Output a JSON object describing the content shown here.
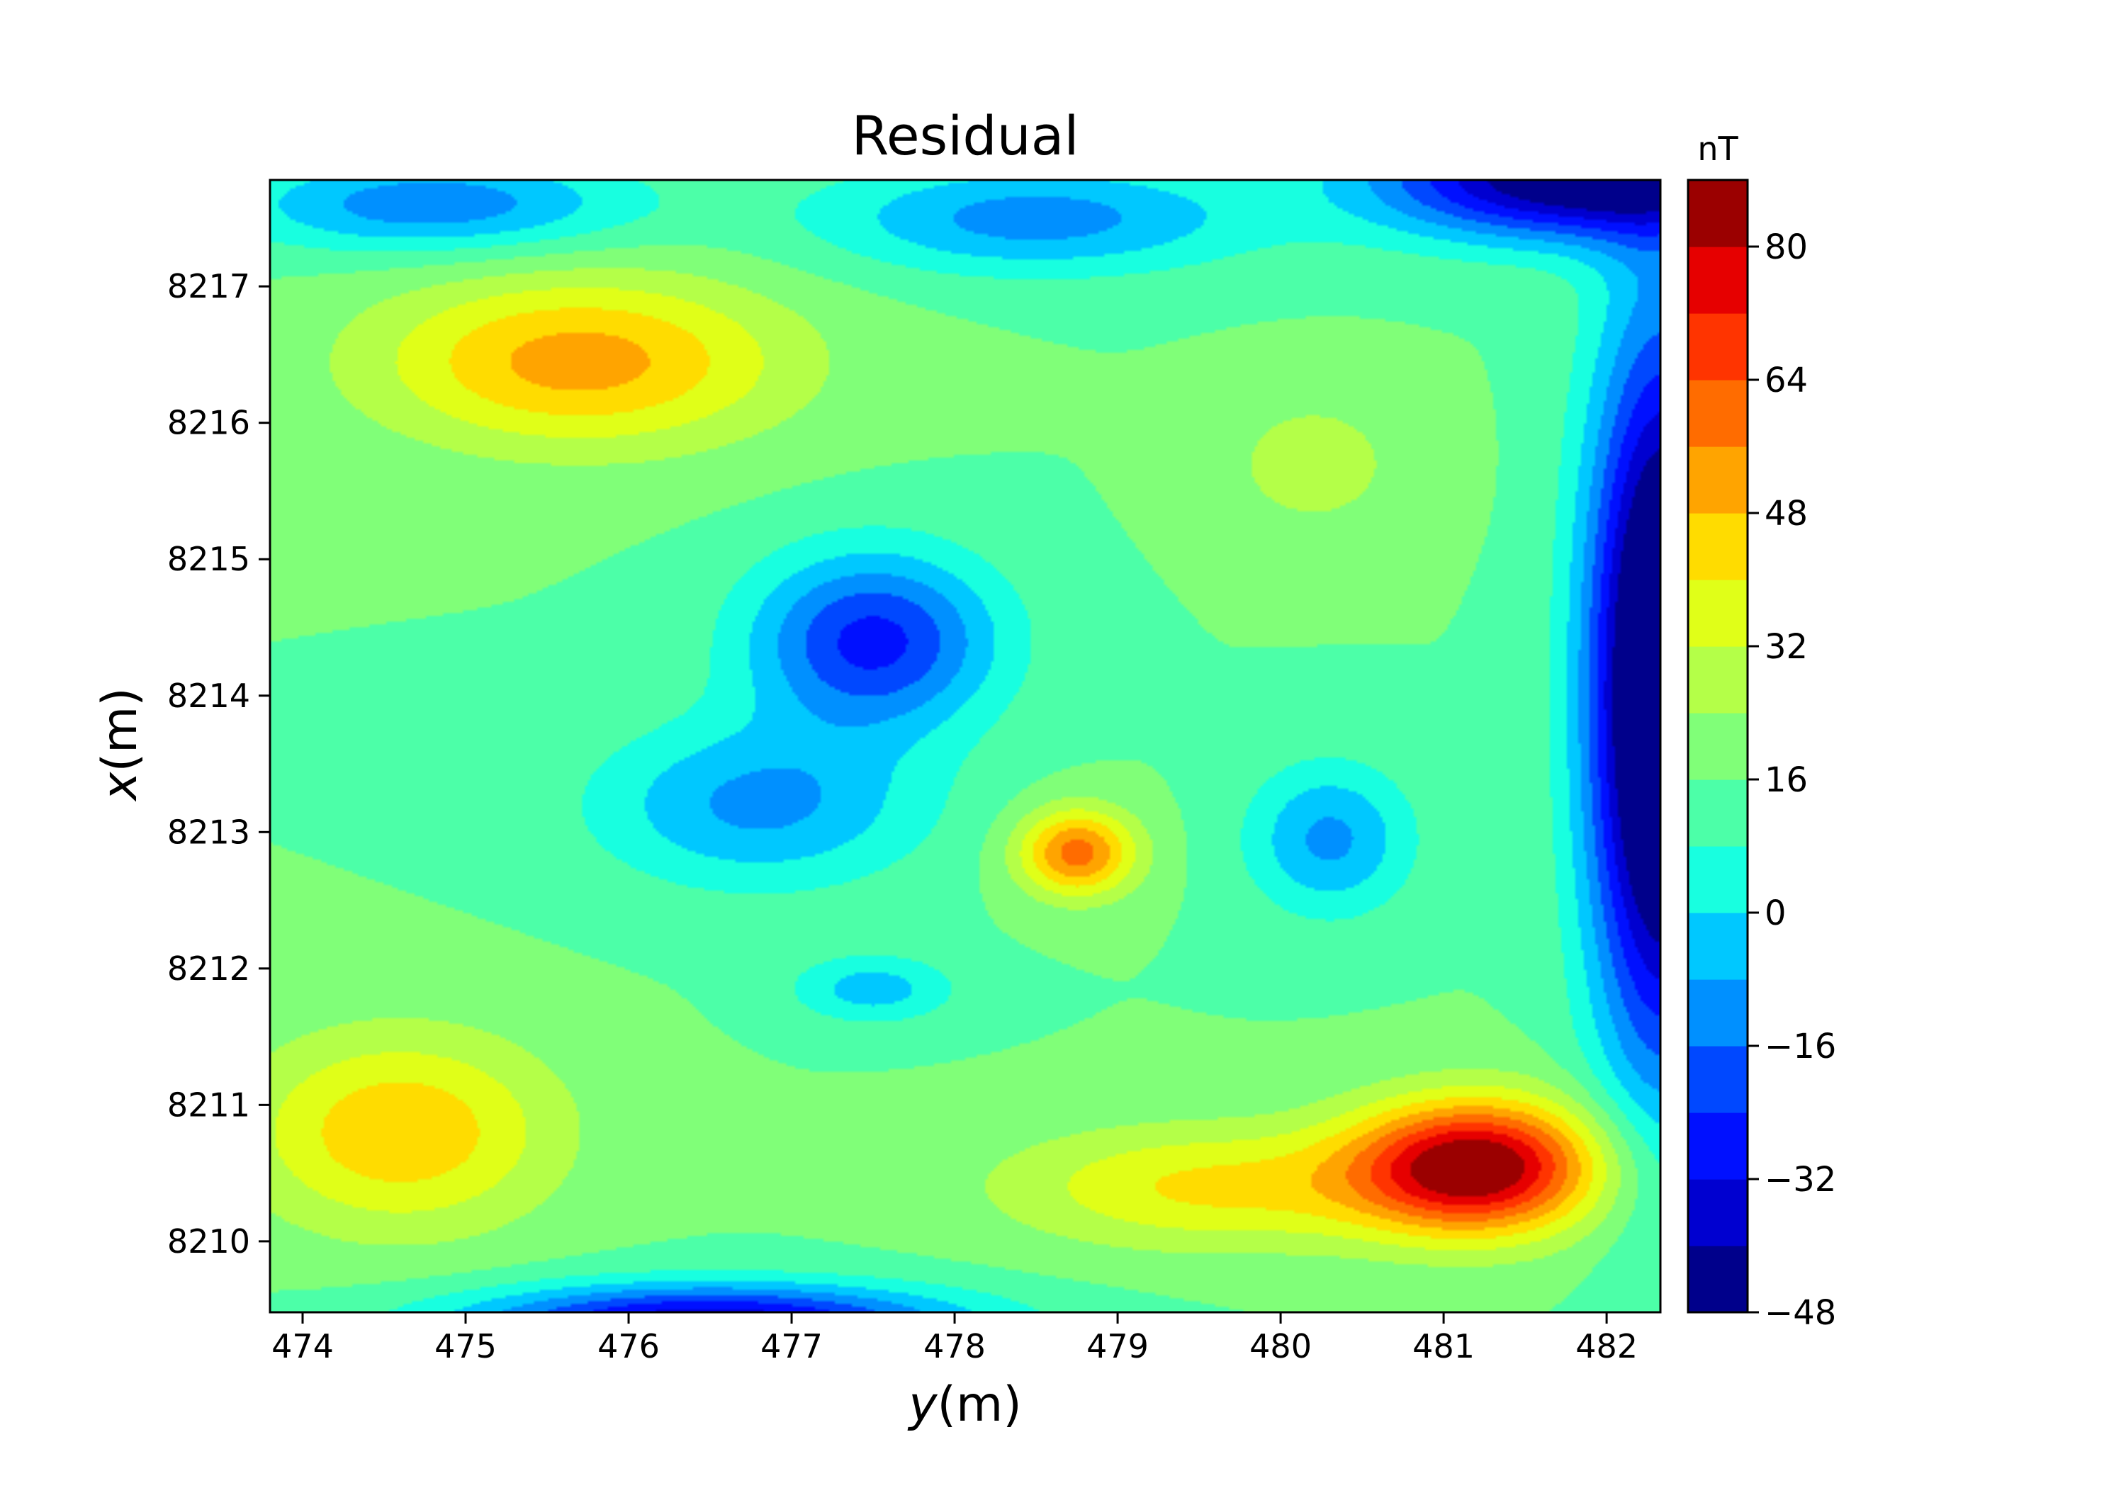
{
  "chart_data": {
    "type": "heatmap",
    "subtype": "filled-contour",
    "title": "Residual",
    "xlabel": {
      "var": "y",
      "unit": "(m)"
    },
    "ylabel": {
      "var": "x",
      "unit": "(m)"
    },
    "xlim": [
      473.8,
      482.33
    ],
    "ylim": [
      8209.48,
      8217.78
    ],
    "x_ticks": [
      474,
      475,
      476,
      477,
      478,
      479,
      480,
      481,
      482
    ],
    "y_ticks": [
      8210,
      8211,
      8212,
      8213,
      8214,
      8215,
      8216,
      8217
    ],
    "x_ticklabels": [
      "474",
      "475",
      "476",
      "477",
      "478",
      "479",
      "480",
      "481",
      "482"
    ],
    "y_ticklabels": [
      "8210",
      "8211",
      "8212",
      "8213",
      "8214",
      "8215",
      "8216",
      "8217"
    ],
    "colormap": "jet",
    "colorbar": {
      "label": "nT",
      "range": [
        -48,
        88
      ],
      "levels": [
        -48,
        -40,
        -32,
        -24,
        -16,
        -8,
        0,
        8,
        16,
        24,
        32,
        40,
        48,
        56,
        64,
        72,
        80,
        88
      ],
      "ticks": [
        -48,
        -32,
        -16,
        0,
        16,
        32,
        48,
        64,
        80
      ],
      "ticklabels": [
        "−48",
        "−32",
        "−16",
        "0",
        "16",
        "32",
        "48",
        "64",
        "80"
      ],
      "colors": [
        "#00008b",
        "#0000d0",
        "#0010ff",
        "#0048ff",
        "#0090ff",
        "#00c8ff",
        "#18ffe0",
        "#4cffa8",
        "#80ff78",
        "#b4ff48",
        "#e0ff18",
        "#ffdc00",
        "#ffa400",
        "#ff6c00",
        "#ff3400",
        "#e60000",
        "#9b0000"
      ]
    },
    "background": 16,
    "features": [
      {
        "kind": "peak",
        "x": 475.7,
        "y": 8216.45,
        "value": 52,
        "sx": 1.25,
        "sy": 0.62
      },
      {
        "kind": "peak",
        "x": 474.6,
        "y": 8210.8,
        "value": 47,
        "sx": 0.95,
        "sy": 0.72
      },
      {
        "kind": "peak",
        "x": 478.75,
        "y": 8212.85,
        "value": 60,
        "sx": 0.36,
        "sy": 0.32
      },
      {
        "kind": "peak",
        "x": 480.2,
        "y": 8215.7,
        "value": 28,
        "sx": 0.6,
        "sy": 0.55
      },
      {
        "kind": "peak",
        "x": 481.2,
        "y": 8210.55,
        "value": 88,
        "sx": 0.75,
        "sy": 0.48
      },
      {
        "kind": "peak",
        "x": 479.6,
        "y": 8210.4,
        "value": 42,
        "sx": 1.3,
        "sy": 0.45
      },
      {
        "kind": "trough",
        "x": 477.5,
        "y": 8214.4,
        "value": -27,
        "sx": 0.75,
        "sy": 0.65
      },
      {
        "kind": "trough",
        "x": 480.3,
        "y": 8212.95,
        "value": -10,
        "sx": 0.5,
        "sy": 0.55
      },
      {
        "kind": "trough",
        "x": 477.5,
        "y": 8211.85,
        "value": -4,
        "sx": 0.5,
        "sy": 0.25
      },
      {
        "kind": "trough",
        "x": 482.35,
        "y": 8214.0,
        "value": -75,
        "sx": 0.45,
        "sy": 2.6
      },
      {
        "kind": "trough",
        "x": 481.8,
        "y": 8217.8,
        "value": -52,
        "sx": 1.2,
        "sy": 0.45
      },
      {
        "kind": "trough",
        "x": 476.5,
        "y": 8209.4,
        "value": -40,
        "sx": 1.5,
        "sy": 0.28
      },
      {
        "kind": "trough",
        "x": 474.8,
        "y": 8217.6,
        "value": -14,
        "sx": 1.2,
        "sy": 0.35
      },
      {
        "kind": "trough",
        "x": 478.5,
        "y": 8217.5,
        "value": -12,
        "sx": 1.3,
        "sy": 0.4
      },
      {
        "kind": "trough",
        "x": 476.8,
        "y": 8213.2,
        "value": -10,
        "sx": 1.0,
        "sy": 0.6
      }
    ]
  }
}
